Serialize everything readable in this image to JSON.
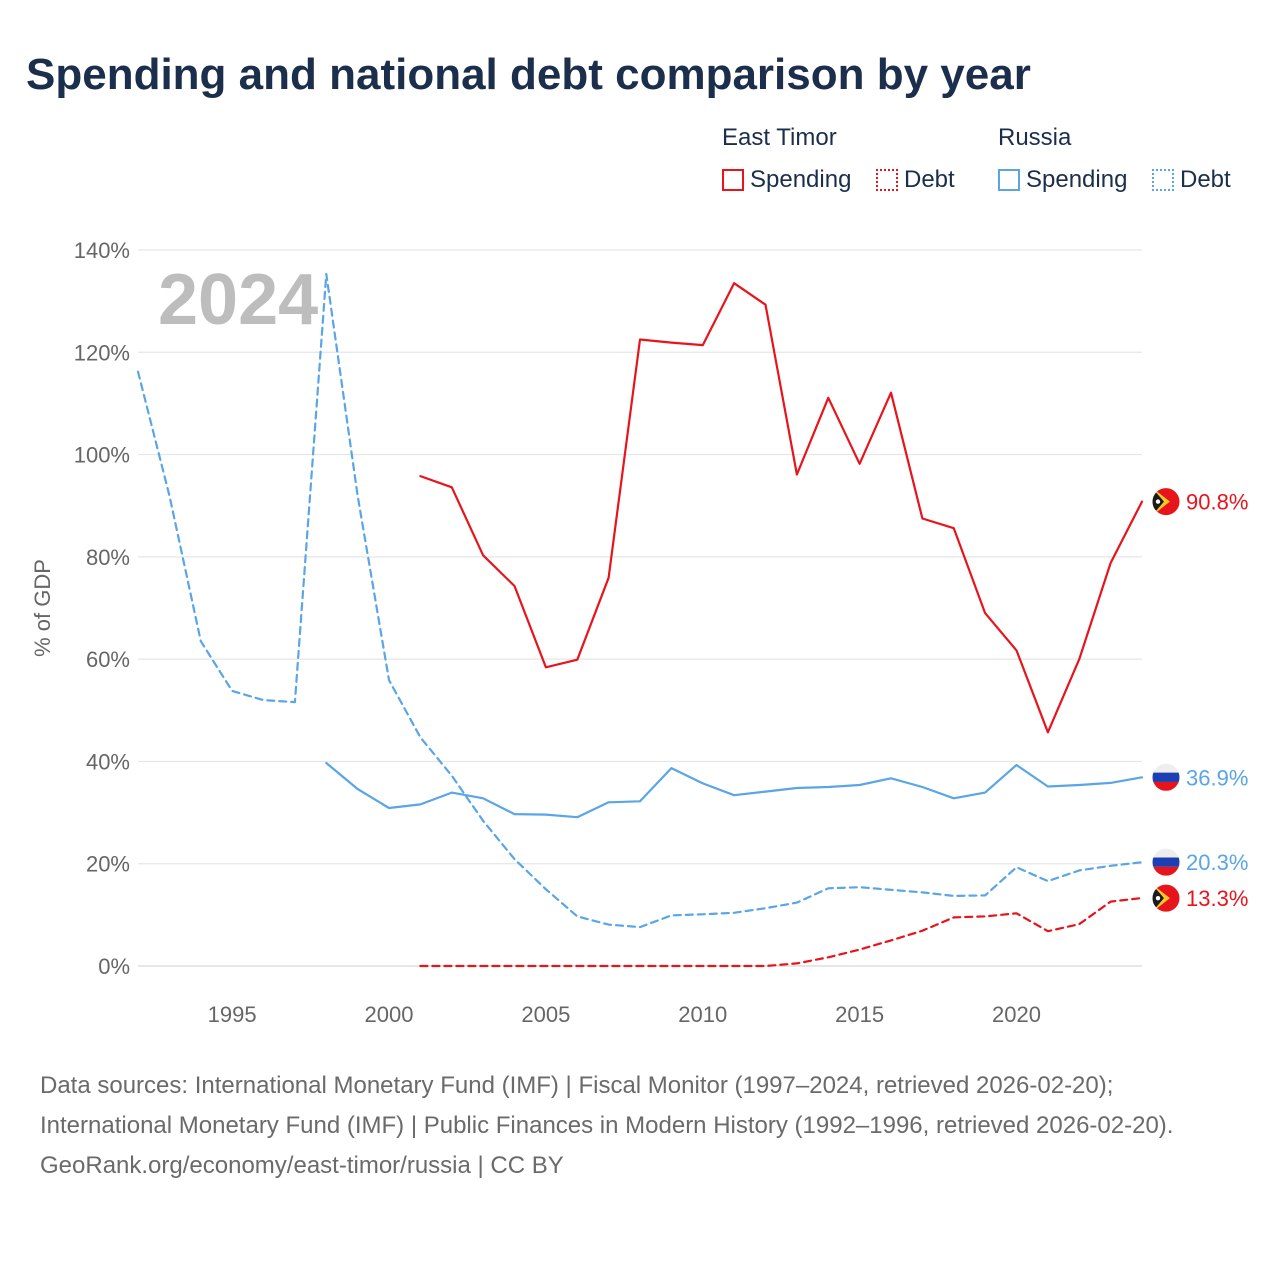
{
  "title": "Spending and national debt comparison by year",
  "legend": {
    "groups": [
      {
        "name": "East Timor",
        "items": [
          {
            "label": "Spending",
            "color": "#e8141c",
            "style": "solid"
          },
          {
            "label": "Debt",
            "color": "#e8141c",
            "style": "dotted"
          }
        ]
      },
      {
        "name": "Russia",
        "items": [
          {
            "label": "Spending",
            "color": "#5aa5e6",
            "style": "solid"
          },
          {
            "label": "Debt",
            "color": "#5aa5e6",
            "style": "dotted"
          }
        ]
      }
    ]
  },
  "year_watermark": "2024",
  "footer": {
    "sources": "Data sources: International Monetary Fund (IMF) | Fiscal Monitor (1997–2024, retrieved 2026-02-20); International Monetary Fund (IMF) | Public Finances in Modern History (1992–1996, retrieved 2026-02-20).",
    "credit": "GeoRank.org/economy/east-timor/russia | CC BY"
  },
  "chart_data": {
    "type": "line",
    "title": "Spending and national debt comparison by year",
    "xlabel": "",
    "ylabel": "% of GDP",
    "xlim": [
      1992,
      2024
    ],
    "ylim": [
      0,
      140
    ],
    "x_ticks": [
      1995,
      2000,
      2005,
      2010,
      2015,
      2020
    ],
    "x_tick_labels": [
      "1995",
      "2000",
      "2005",
      "2010",
      "2015",
      "2020"
    ],
    "y_ticks": [
      0,
      20,
      40,
      60,
      80,
      100,
      120,
      140
    ],
    "y_tick_labels": [
      "0%",
      "20%",
      "40%",
      "60%",
      "80%",
      "100%",
      "120%",
      "140%"
    ],
    "grid": true,
    "series": [
      {
        "name": "East Timor Spending",
        "country": "East Timor",
        "measure": "Spending",
        "color": "#e8141c",
        "dash": "solid",
        "points": [
          [
            2001,
            95.8
          ],
          [
            2002,
            93.6
          ],
          [
            2003,
            80.3
          ],
          [
            2004,
            74.3
          ],
          [
            2005,
            58.4
          ],
          [
            2006,
            59.9
          ],
          [
            2007,
            75.9
          ],
          [
            2008,
            122.5
          ],
          [
            2009,
            121.9
          ],
          [
            2010,
            121.4
          ],
          [
            2011,
            133.5
          ],
          [
            2012,
            129.3
          ],
          [
            2013,
            96.1
          ],
          [
            2014,
            111.1
          ],
          [
            2015,
            98.2
          ],
          [
            2016,
            112.1
          ],
          [
            2017,
            87.5
          ],
          [
            2018,
            85.6
          ],
          [
            2019,
            69.0
          ],
          [
            2020,
            61.7
          ],
          [
            2021,
            45.7
          ],
          [
            2022,
            60.0
          ],
          [
            2023,
            78.8
          ],
          [
            2024,
            90.8
          ]
        ],
        "end_label": "90.8%"
      },
      {
        "name": "East Timor Debt",
        "country": "East Timor",
        "measure": "Debt",
        "color": "#e8141c",
        "dash": "dashed",
        "points": [
          [
            2001,
            0.0
          ],
          [
            2002,
            0.0
          ],
          [
            2003,
            0.0
          ],
          [
            2004,
            0.0
          ],
          [
            2005,
            0.0
          ],
          [
            2006,
            0.0
          ],
          [
            2007,
            0.0
          ],
          [
            2008,
            0.0
          ],
          [
            2009,
            0.0
          ],
          [
            2010,
            0.0
          ],
          [
            2011,
            0.0
          ],
          [
            2012,
            0.0
          ],
          [
            2013,
            0.5
          ],
          [
            2014,
            1.7
          ],
          [
            2015,
            3.2
          ],
          [
            2016,
            5.0
          ],
          [
            2017,
            6.9
          ],
          [
            2018,
            9.5
          ],
          [
            2019,
            9.7
          ],
          [
            2020,
            10.3
          ],
          [
            2021,
            6.8
          ],
          [
            2022,
            8.2
          ],
          [
            2023,
            12.6
          ],
          [
            2024,
            13.3
          ]
        ],
        "end_label": "13.3%"
      },
      {
        "name": "Russia Spending",
        "country": "Russia",
        "measure": "Spending",
        "color": "#5aa5e6",
        "dash": "solid",
        "points": [
          [
            1998,
            39.7
          ],
          [
            1999,
            34.6
          ],
          [
            2000,
            30.9
          ],
          [
            2001,
            31.6
          ],
          [
            2002,
            33.9
          ],
          [
            2003,
            32.8
          ],
          [
            2004,
            29.7
          ],
          [
            2005,
            29.6
          ],
          [
            2006,
            29.1
          ],
          [
            2007,
            32.0
          ],
          [
            2008,
            32.2
          ],
          [
            2009,
            38.7
          ],
          [
            2010,
            35.7
          ],
          [
            2011,
            33.4
          ],
          [
            2012,
            34.1
          ],
          [
            2013,
            34.8
          ],
          [
            2014,
            35.0
          ],
          [
            2015,
            35.4
          ],
          [
            2016,
            36.7
          ],
          [
            2017,
            35.0
          ],
          [
            2018,
            32.8
          ],
          [
            2019,
            33.9
          ],
          [
            2020,
            39.3
          ],
          [
            2021,
            35.1
          ],
          [
            2022,
            35.4
          ],
          [
            2023,
            35.8
          ],
          [
            2024,
            36.9
          ]
        ],
        "end_label": "36.9%"
      },
      {
        "name": "Russia Debt",
        "country": "Russia",
        "measure": "Debt",
        "color": "#5aa5e6",
        "dash": "dashed",
        "points": [
          [
            1992,
            116.2
          ],
          [
            1993,
            92.0
          ],
          [
            1994,
            63.5
          ],
          [
            1995,
            53.8
          ],
          [
            1996,
            52.0
          ],
          [
            1997,
            51.6
          ],
          [
            1998,
            135.3
          ],
          [
            1999,
            92.0
          ],
          [
            2000,
            55.9
          ],
          [
            2001,
            44.7
          ],
          [
            2002,
            37.2
          ],
          [
            2003,
            28.4
          ],
          [
            2004,
            20.9
          ],
          [
            2005,
            15.0
          ],
          [
            2006,
            9.7
          ],
          [
            2007,
            8.1
          ],
          [
            2008,
            7.6
          ],
          [
            2009,
            9.9
          ],
          [
            2010,
            10.1
          ],
          [
            2011,
            10.4
          ],
          [
            2012,
            11.3
          ],
          [
            2013,
            12.4
          ],
          [
            2014,
            15.2
          ],
          [
            2015,
            15.4
          ],
          [
            2016,
            14.9
          ],
          [
            2017,
            14.4
          ],
          [
            2018,
            13.7
          ],
          [
            2019,
            13.8
          ],
          [
            2020,
            19.3
          ],
          [
            2021,
            16.6
          ],
          [
            2022,
            18.7
          ],
          [
            2023,
            19.6
          ],
          [
            2024,
            20.3
          ]
        ],
        "end_label": "20.3%"
      }
    ]
  }
}
